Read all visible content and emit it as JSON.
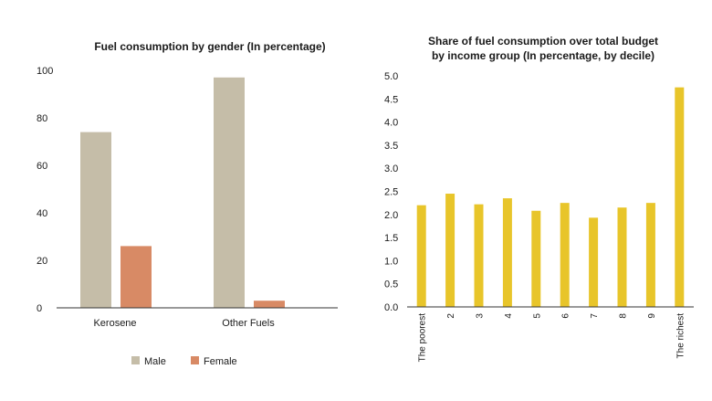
{
  "chart_data": [
    {
      "type": "bar",
      "title": "Fuel consumption by gender (In percentage)",
      "categories": [
        "Kerosene",
        "Other Fuels"
      ],
      "series": [
        {
          "name": "Male",
          "values": [
            74,
            97
          ],
          "color": "#c5bda8"
        },
        {
          "name": "Female",
          "values": [
            26,
            3
          ],
          "color": "#d88a65"
        }
      ],
      "yticks": [
        "0",
        "20",
        "40",
        "60",
        "80",
        "100"
      ],
      "ylim": [
        0,
        100
      ],
      "xlabel": "",
      "ylabel": "",
      "legend": "bottom"
    },
    {
      "type": "bar",
      "title": "Share of fuel consumption over total budget\nby income group (In percentage, by decile)",
      "categories": [
        "The poorest",
        "2",
        "3",
        "4",
        "5",
        "6",
        "7",
        "8",
        "9",
        "The richest"
      ],
      "values": [
        2.2,
        2.45,
        2.22,
        2.35,
        2.08,
        2.25,
        1.93,
        2.15,
        2.25,
        4.75
      ],
      "color": "#e8c52a",
      "yticks": [
        "0.0",
        "0.5",
        "1.0",
        "1.5",
        "2.0",
        "2.5",
        "3.0",
        "3.5",
        "4.0",
        "4.5",
        "5.0"
      ],
      "ylim": [
        0,
        5
      ],
      "xlabel": "",
      "ylabel": ""
    }
  ]
}
